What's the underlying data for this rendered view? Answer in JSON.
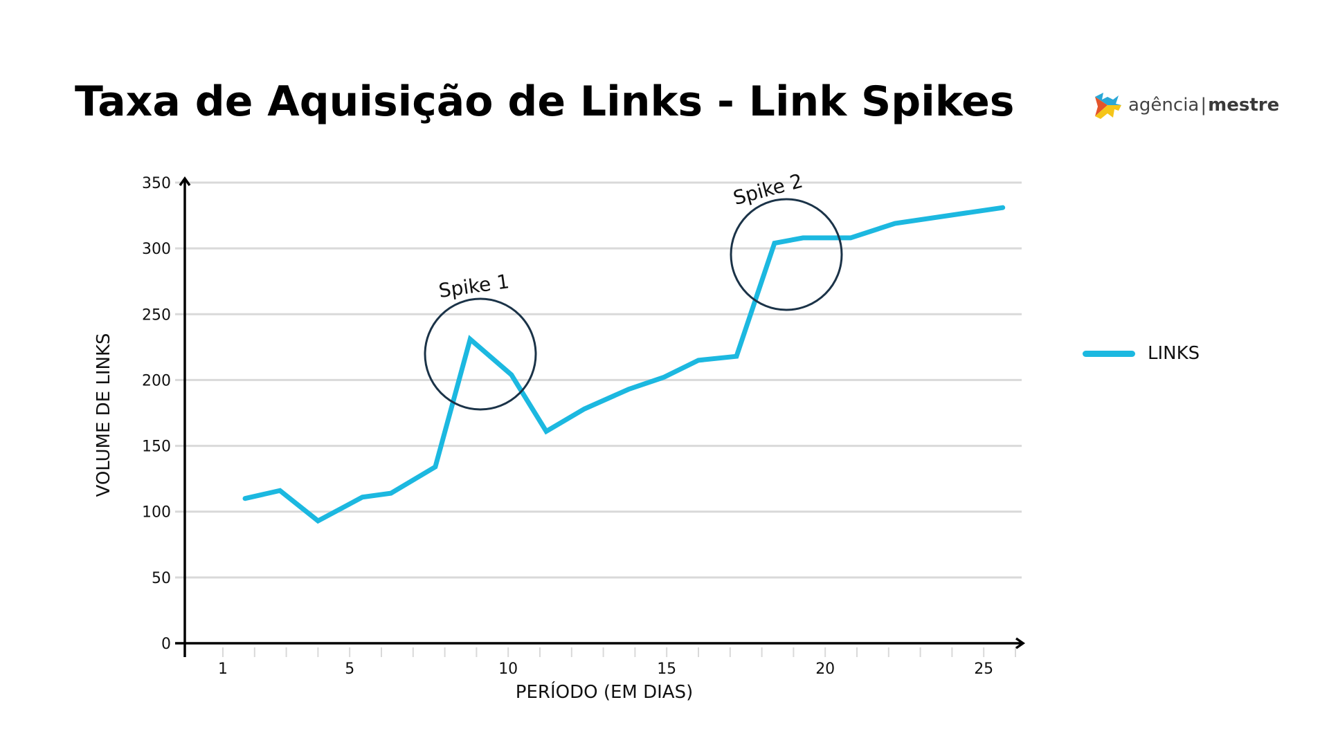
{
  "title": "Taxa de Aquisição de Links - Link Spikes",
  "logo": {
    "light": "agência",
    "separator": "|",
    "bold": "mestre",
    "icon": "agencia-mestre-logo-icon"
  },
  "chart_data": {
    "type": "line",
    "title": "Taxa de Aquisição de Links - Link Spikes",
    "xlabel": "PERÍODO (EM DIAS)",
    "ylabel": "VOLUME DE LINKS",
    "ylim": [
      0,
      350
    ],
    "xlim": [
      0.5,
      27
    ],
    "yticks": [
      0,
      50,
      100,
      150,
      200,
      250,
      300,
      350
    ],
    "xticks": [
      1,
      5,
      10,
      15,
      20,
      25
    ],
    "grid": true,
    "legend_position": "right",
    "series": [
      {
        "name": "LINKS",
        "color": "#1cb8e0",
        "x": [
          1.7,
          2.8,
          4.0,
          5.4,
          6.3,
          7.7,
          8.8,
          10.1,
          11.2,
          12.4,
          13.8,
          14.9,
          16.0,
          17.2,
          18.4,
          19.3,
          20.8,
          22.2,
          25.6
        ],
        "values": [
          110,
          116,
          93,
          111,
          114,
          134,
          231,
          204,
          161,
          178,
          193,
          202,
          215,
          218,
          304,
          308,
          308,
          319,
          331
        ]
      }
    ],
    "annotations": [
      {
        "label": "Spike 1",
        "x": 8.8,
        "y": 231,
        "shape": "circle"
      },
      {
        "label": "Spike 2",
        "x": 18.5,
        "y": 295,
        "shape": "circle"
      }
    ]
  },
  "legend": {
    "items": [
      {
        "label": "LINKS",
        "color": "#1cb8e0"
      }
    ]
  },
  "colors": {
    "line": "#1cb8e0",
    "circle": "#1b3348",
    "grid": "#d9d9d9",
    "axis": "#000000"
  }
}
